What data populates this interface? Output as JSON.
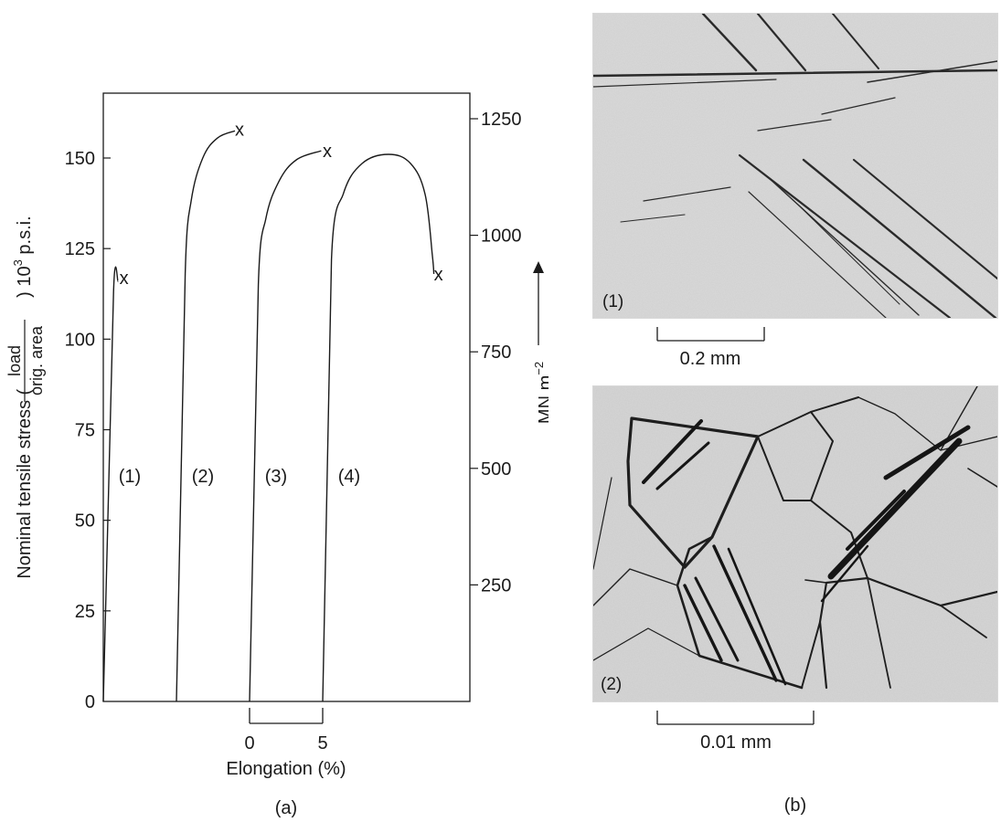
{
  "figure": {
    "panel_a_label": "(a)",
    "panel_b_label": "(b)"
  },
  "chart_data": {
    "type": "line",
    "ylabel_left_prefix": "Nominal tensile stress (",
    "ylabel_left_fraction_num": "load",
    "ylabel_left_fraction_den": "orig. area",
    "ylabel_left_suffix": ") 10",
    "ylabel_left_exp": "3",
    "ylabel_left_unit": " p.s.i.",
    "ylabel_right": "MN m",
    "ylabel_right_exp": "−2",
    "xlabel": "Elongation (%)",
    "xscale_ticks": [
      "0",
      "5"
    ],
    "left_ticks": [
      {
        "value": 0,
        "label": "0"
      },
      {
        "value": 25,
        "label": "25"
      },
      {
        "value": 50,
        "label": "50"
      },
      {
        "value": 75,
        "label": "75"
      },
      {
        "value": 100,
        "label": "100"
      },
      {
        "value": 125,
        "label": "125"
      },
      {
        "value": 150,
        "label": "150"
      }
    ],
    "right_ticks": [
      {
        "value": 250,
        "label": "250"
      },
      {
        "value": 500,
        "label": "500"
      },
      {
        "value": 750,
        "label": "750"
      },
      {
        "value": 1000,
        "label": "1000"
      },
      {
        "value": 1250,
        "label": "1250"
      }
    ],
    "ylim_left": [
      0,
      167
    ],
    "ylim_right_note": "MN m-2 equivalent",
    "x_range_percent": [
      0,
      25
    ],
    "fracture_marker": "x",
    "series": [
      {
        "name": "(1)",
        "points": [
          [
            0,
            0
          ],
          [
            0.7,
            113
          ],
          [
            1.0,
            116
          ]
        ],
        "fracture": [
          1.1,
          117
        ]
      },
      {
        "name": "(2)",
        "points": [
          [
            5,
            0
          ],
          [
            5.6,
            118
          ],
          [
            6.0,
            138
          ],
          [
            6.8,
            150
          ],
          [
            7.8,
            155.5
          ],
          [
            9.0,
            157.5
          ]
        ],
        "fracture": [
          9.0,
          158
        ]
      },
      {
        "name": "(3)",
        "points": [
          [
            10,
            0
          ],
          [
            10.6,
            115
          ],
          [
            11.1,
            133
          ],
          [
            12.0,
            143.5
          ],
          [
            13.2,
            149.5
          ],
          [
            14.9,
            152
          ]
        ],
        "fracture": [
          15.0,
          152
        ]
      },
      {
        "name": "(4)",
        "points": [
          [
            15,
            0
          ],
          [
            15.6,
            122
          ],
          [
            16.4,
            140
          ],
          [
            17.7,
            148.5
          ],
          [
            19.5,
            151
          ],
          [
            21.0,
            148.5
          ],
          [
            22.0,
            140
          ],
          [
            22.5,
            123
          ],
          [
            22.6,
            118
          ]
        ],
        "fracture": [
          22.6,
          118
        ]
      }
    ]
  },
  "micrographs": [
    {
      "label": "(1)",
      "scale_label": "0.2 mm"
    },
    {
      "label": "(2)",
      "scale_label": "0.01 mm"
    }
  ]
}
